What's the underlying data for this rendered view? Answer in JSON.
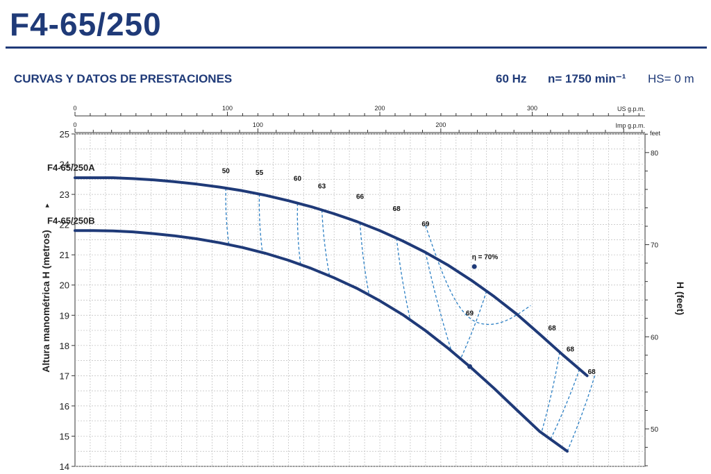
{
  "header": {
    "title": "F4-65/250",
    "subtitle": "CURVAS Y DATOS DE PRESTACIONES",
    "frequency": "60 Hz",
    "speed": "n= 1750 min⁻¹",
    "hs": "HS= 0 m"
  },
  "chart_data": {
    "type": "line",
    "badge": "F4",
    "ylabel": "Altura manométrica H (metros)",
    "ylabel_arrow": "▸",
    "y2label": "H (feet)",
    "y2_unit": "feet",
    "top_axis_label": "US g.p.m.",
    "second_axis_label": "Imp g.p.m.",
    "ylim": [
      14,
      25
    ],
    "xlim": [
      0,
      374
    ],
    "yticks": [
      "14",
      "15",
      "16",
      "17",
      "18",
      "19",
      "20",
      "21",
      "22",
      "23",
      "24",
      "25"
    ],
    "us_gpm_ticks": [
      "0",
      "100",
      "200",
      "300"
    ],
    "imp_gpm_ticks": [
      "0",
      "100",
      "200"
    ],
    "feet_ticks": [
      "50",
      "60",
      "70",
      "80"
    ],
    "grid": true,
    "series": [
      {
        "name": "F4-65/250A",
        "x": [
          0,
          12,
          25,
          38,
          52,
          65,
          80,
          95,
          110,
          125,
          140,
          155,
          170,
          185,
          200,
          215,
          230,
          245,
          260,
          275,
          290,
          305,
          320,
          336
        ],
        "y": [
          23.55,
          23.55,
          23.55,
          23.52,
          23.48,
          23.42,
          23.34,
          23.24,
          23.12,
          22.97,
          22.79,
          22.59,
          22.36,
          22.1,
          21.8,
          21.46,
          21.08,
          20.65,
          20.16,
          19.62,
          19.03,
          18.37,
          17.69,
          17.0
        ]
      },
      {
        "name": "F4-65/250B",
        "x": [
          0,
          12,
          25,
          38,
          52,
          65,
          80,
          95,
          110,
          125,
          140,
          155,
          170,
          185,
          200,
          215,
          230,
          245,
          260,
          275,
          290,
          305,
          323
        ],
        "y": [
          21.8,
          21.8,
          21.79,
          21.76,
          21.7,
          21.63,
          21.53,
          21.4,
          21.24,
          21.05,
          20.82,
          20.55,
          20.24,
          19.89,
          19.48,
          19.02,
          18.49,
          17.9,
          17.26,
          16.58,
          15.86,
          15.15,
          14.5
        ]
      }
    ],
    "efficiency_labels": [
      {
        "label": "50",
        "x": 99,
        "y": 23.7
      },
      {
        "label": "55",
        "x": 121,
        "y": 23.65
      },
      {
        "label": "60",
        "x": 146,
        "y": 23.45
      },
      {
        "label": "63",
        "x": 162,
        "y": 23.2
      },
      {
        "label": "66",
        "x": 187,
        "y": 22.85
      },
      {
        "label": "68",
        "x": 211,
        "y": 22.45
      },
      {
        "label": "69",
        "x": 230,
        "y": 21.95
      },
      {
        "label": "η = 70%",
        "x": 269,
        "y": 20.85
      },
      {
        "label": "69",
        "x": 259,
        "y": 19.0
      },
      {
        "label": "68",
        "x": 313,
        "y": 18.5
      },
      {
        "label": "68",
        "x": 325,
        "y": 17.8
      },
      {
        "label": "68",
        "x": 339,
        "y": 17.05
      }
    ],
    "bep_point": {
      "x": 262,
      "y": 20.61
    }
  }
}
